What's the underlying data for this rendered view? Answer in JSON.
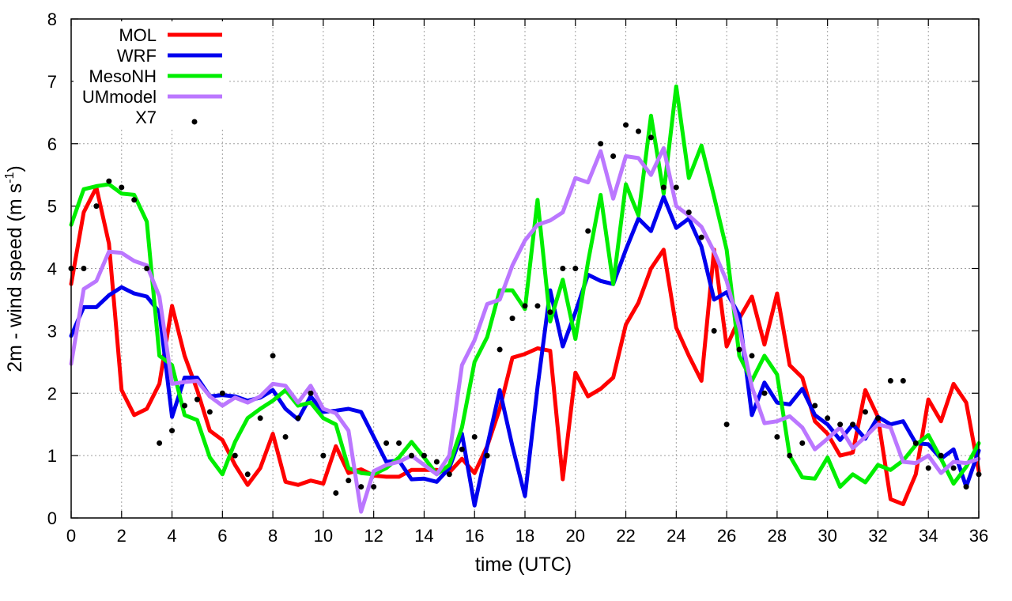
{
  "chart_data": {
    "type": "line",
    "xlabel": "time (UTC)",
    "ylabel_main": "2m - wind speed  (m s",
    "ylabel_sup": "-1",
    "ylabel_tail": ")",
    "xlim": [
      0,
      36
    ],
    "ylim": [
      0,
      8
    ],
    "xticks": [
      0,
      2,
      4,
      6,
      8,
      10,
      12,
      14,
      16,
      18,
      20,
      22,
      24,
      26,
      28,
      30,
      32,
      34,
      36
    ],
    "yticks": [
      0,
      1,
      2,
      3,
      4,
      5,
      6,
      7,
      8
    ],
    "grid": true,
    "legend_position": "top-left",
    "series": [
      {
        "name": "MOL",
        "color": "#ff0000",
        "style": "line",
        "x": [
          0,
          0.5,
          1,
          1.5,
          2,
          2.5,
          3,
          3.5,
          4,
          4.5,
          5,
          5.5,
          6,
          6.5,
          7,
          7.5,
          8,
          8.5,
          9,
          9.5,
          10,
          10.5,
          11,
          11.5,
          12,
          12.5,
          13,
          13.5,
          14,
          14.5,
          15,
          15.5,
          16,
          16.5,
          17,
          17.5,
          18,
          18.5,
          19,
          19.5,
          20,
          20.5,
          21,
          21.5,
          22,
          22.5,
          23,
          23.5,
          24,
          24.5,
          25,
          25.5,
          26,
          26.5,
          27,
          27.5,
          28,
          28.5,
          29,
          29.5,
          30,
          30.5,
          31,
          31.5,
          32,
          32.5,
          33,
          33.5,
          34,
          34.5,
          35,
          35.5,
          36
        ],
        "y": [
          3.75,
          4.9,
          5.3,
          4.4,
          2.05,
          1.65,
          1.75,
          2.15,
          3.4,
          2.6,
          2.05,
          1.4,
          1.25,
          0.85,
          0.53,
          0.8,
          1.35,
          0.58,
          0.53,
          0.6,
          0.55,
          1.15,
          0.72,
          0.78,
          0.68,
          0.66,
          0.66,
          0.77,
          0.77,
          0.77,
          0.73,
          0.95,
          0.72,
          1.15,
          1.75,
          2.57,
          2.63,
          2.72,
          2.68,
          0.62,
          2.33,
          1.95,
          2.07,
          2.25,
          3.1,
          3.45,
          4.0,
          4.3,
          3.05,
          2.6,
          2.2,
          4.3,
          2.75,
          3.2,
          3.55,
          2.78,
          3.6,
          2.45,
          2.25,
          1.55,
          1.35,
          1.0,
          1.05,
          2.05,
          1.62,
          0.3,
          0.22,
          0.7,
          1.9,
          1.55,
          2.15,
          1.85,
          0.75
        ]
      },
      {
        "name": "WRF",
        "color": "#0000ee",
        "style": "line",
        "x": [
          0,
          0.5,
          1,
          1.5,
          2,
          2.5,
          3,
          3.5,
          4,
          4.5,
          5,
          5.5,
          6,
          6.5,
          7,
          7.5,
          8,
          8.5,
          9,
          9.5,
          10,
          10.5,
          11,
          11.5,
          12,
          12.5,
          13,
          13.5,
          14,
          14.5,
          15,
          15.5,
          16,
          16.5,
          17,
          17.5,
          18,
          18.5,
          19,
          19.5,
          20,
          20.5,
          21,
          21.5,
          22,
          22.5,
          23,
          23.5,
          24,
          24.5,
          25,
          25.5,
          26,
          26.5,
          27,
          27.5,
          28,
          28.5,
          29,
          29.5,
          30,
          30.5,
          31,
          31.5,
          32,
          32.5,
          33,
          33.5,
          34,
          34.5,
          35,
          35.5,
          36
        ],
        "y": [
          2.92,
          3.38,
          3.38,
          3.57,
          3.7,
          3.6,
          3.55,
          3.3,
          1.62,
          2.25,
          2.25,
          1.95,
          1.97,
          1.95,
          1.88,
          1.93,
          2.05,
          1.75,
          1.58,
          1.95,
          1.7,
          1.72,
          1.75,
          1.7,
          1.3,
          0.9,
          0.92,
          0.62,
          0.63,
          0.58,
          0.8,
          1.35,
          0.2,
          1.15,
          2.05,
          1.15,
          0.35,
          2.1,
          3.65,
          2.75,
          3.3,
          3.9,
          3.8,
          3.75,
          4.3,
          4.8,
          4.6,
          5.15,
          4.65,
          4.8,
          4.35,
          3.5,
          3.62,
          3.25,
          1.65,
          2.17,
          1.85,
          1.82,
          2.07,
          1.65,
          1.5,
          1.25,
          1.5,
          1.27,
          1.62,
          1.5,
          1.55,
          1.2,
          1.18,
          0.95,
          1.1,
          0.5,
          1.08
        ]
      },
      {
        "name": "MesoNH",
        "color": "#00ee00",
        "style": "line",
        "x": [
          0,
          0.5,
          1,
          1.5,
          2,
          2.5,
          3,
          3.5,
          4,
          4.5,
          5,
          5.5,
          6,
          6.5,
          7,
          7.5,
          8,
          8.5,
          9,
          9.5,
          10,
          10.5,
          11,
          11.5,
          12,
          12.5,
          13,
          13.5,
          14,
          14.5,
          15,
          15.5,
          16,
          16.5,
          17,
          17.5,
          18,
          18.5,
          19,
          19.5,
          20,
          20.5,
          21,
          21.5,
          22,
          22.5,
          23,
          23.5,
          24,
          24.5,
          25,
          25.5,
          26,
          26.5,
          27,
          27.5,
          28,
          28.5,
          29,
          29.5,
          30,
          30.5,
          31,
          31.5,
          32,
          32.5,
          33,
          33.5,
          34,
          34.5,
          35,
          35.5,
          36
        ],
        "y": [
          4.7,
          5.27,
          5.32,
          5.35,
          5.2,
          5.18,
          4.75,
          2.6,
          2.45,
          1.65,
          1.57,
          0.97,
          0.7,
          1.22,
          1.6,
          1.75,
          1.88,
          2.05,
          1.8,
          1.85,
          1.6,
          1.5,
          0.8,
          0.72,
          0.7,
          0.8,
          0.97,
          1.22,
          0.97,
          0.7,
          0.85,
          1.45,
          2.5,
          2.9,
          3.65,
          3.65,
          3.35,
          5.1,
          3.15,
          3.82,
          2.87,
          4.1,
          5.18,
          3.75,
          5.35,
          4.85,
          6.45,
          5.2,
          6.92,
          5.45,
          5.97,
          5.15,
          4.3,
          2.6,
          2.2,
          2.6,
          2.3,
          1.0,
          0.65,
          0.63,
          0.97,
          0.5,
          0.7,
          0.57,
          0.85,
          0.77,
          0.92,
          1.17,
          1.33,
          0.95,
          0.55,
          0.82,
          1.2
        ]
      },
      {
        "name": "UMmodel",
        "color": "#bb77ff",
        "style": "line",
        "x": [
          0,
          0.5,
          1,
          1.5,
          2,
          2.5,
          3,
          3.5,
          4,
          4.5,
          5,
          5.5,
          6,
          6.5,
          7,
          7.5,
          8,
          8.5,
          9,
          9.5,
          10,
          10.5,
          11,
          11.5,
          12,
          12.5,
          13,
          13.5,
          14,
          14.5,
          15,
          15.5,
          16,
          16.5,
          17,
          17.5,
          18,
          18.5,
          19,
          19.5,
          20,
          20.5,
          21,
          21.5,
          22,
          22.5,
          23,
          23.5,
          24,
          24.5,
          25,
          25.5,
          26,
          26.5,
          27,
          27.5,
          28,
          28.5,
          29,
          29.5,
          30,
          30.5,
          31,
          31.5,
          32,
          32.5,
          33,
          33.5,
          34,
          34.5,
          35,
          35.5,
          36
        ],
        "y": [
          2.47,
          3.67,
          3.8,
          4.27,
          4.25,
          4.12,
          4.05,
          3.55,
          2.15,
          2.18,
          2.2,
          1.95,
          1.8,
          1.93,
          1.85,
          1.95,
          2.15,
          2.12,
          1.85,
          2.12,
          1.75,
          1.68,
          1.4,
          0.1,
          0.75,
          0.85,
          0.9,
          1.0,
          0.85,
          0.7,
          1.0,
          2.45,
          2.85,
          3.43,
          3.5,
          4.05,
          4.45,
          4.7,
          4.77,
          4.9,
          5.45,
          5.38,
          5.88,
          5.12,
          5.8,
          5.77,
          5.5,
          5.93,
          5.0,
          4.85,
          4.67,
          4.27,
          3.8,
          3.05,
          2.1,
          1.52,
          1.55,
          1.63,
          1.45,
          1.1,
          1.27,
          1.45,
          1.12,
          1.3,
          1.5,
          1.45,
          0.9,
          0.88,
          1.0,
          0.72,
          0.9,
          0.88,
          0.95
        ]
      },
      {
        "name": "X7",
        "color": "#000000",
        "style": "points",
        "x": [
          0,
          0.5,
          1,
          1.5,
          2,
          2.5,
          3,
          3.5,
          4,
          4.5,
          5,
          5.5,
          6,
          6.5,
          7,
          7.5,
          8,
          8.5,
          9,
          9.5,
          10,
          10.5,
          11,
          11.5,
          12,
          12.5,
          13,
          13.5,
          14,
          14.5,
          15,
          15.5,
          16,
          16.5,
          17,
          17.5,
          18,
          18.5,
          19,
          19.5,
          20,
          20.5,
          21,
          21.5,
          22,
          22.5,
          23,
          23.5,
          24,
          24.5,
          25,
          25.5,
          26,
          26.5,
          27,
          27.5,
          28,
          28.5,
          29,
          29.5,
          30,
          30.5,
          31,
          31.5,
          32,
          32.5,
          33,
          33.5,
          34,
          34.5,
          35,
          35.5,
          36
        ],
        "y": [
          4.0,
          4.0,
          5.0,
          5.4,
          5.3,
          5.1,
          4.0,
          1.2,
          1.4,
          1.8,
          1.9,
          1.7,
          2.0,
          1.0,
          0.7,
          1.6,
          2.6,
          1.3,
          1.6,
          2.0,
          1.0,
          0.4,
          0.6,
          0.5,
          0.5,
          1.2,
          1.2,
          1.0,
          1.0,
          0.9,
          0.7,
          1.1,
          1.3,
          1.0,
          2.7,
          3.2,
          3.4,
          3.4,
          3.3,
          4.0,
          4.0,
          4.6,
          6.0,
          5.8,
          6.3,
          6.2,
          6.1,
          5.3,
          5.3,
          4.9,
          4.5,
          3.0,
          1.5,
          2.7,
          2.6,
          2.0,
          1.3,
          1.0,
          1.2,
          1.8,
          1.6,
          1.5,
          1.5,
          1.7,
          1.6,
          2.2,
          2.2,
          1.2,
          0.8,
          1.0,
          0.8,
          0.5,
          0.7
        ]
      }
    ]
  }
}
